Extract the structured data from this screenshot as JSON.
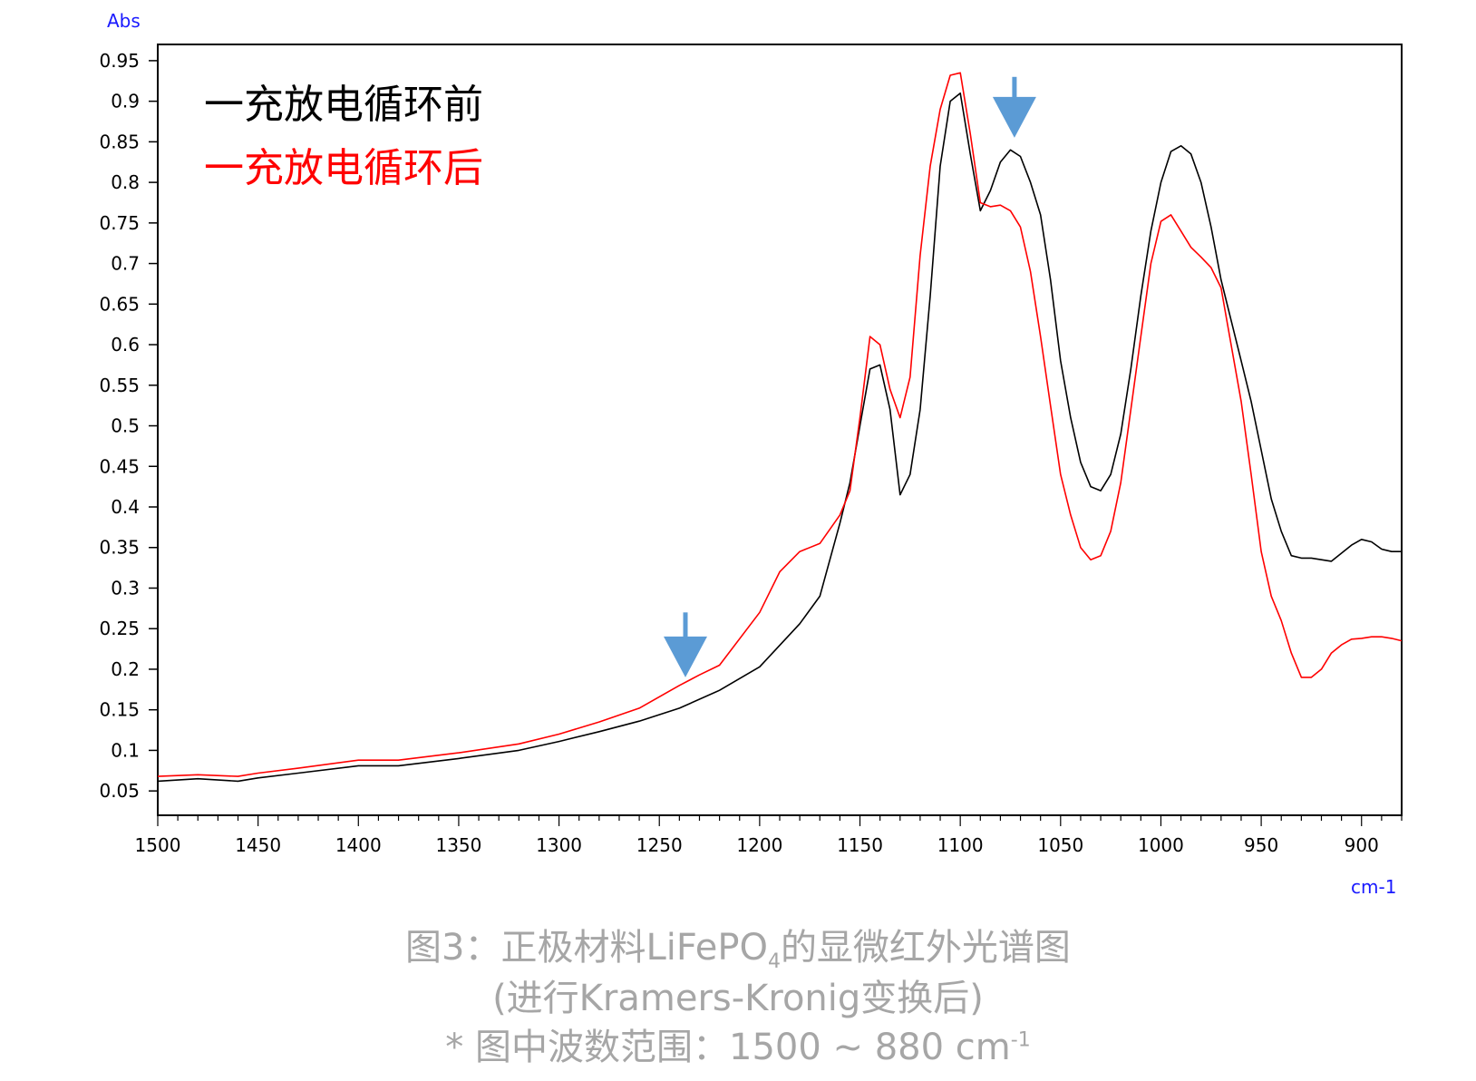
{
  "chart_data": {
    "type": "line",
    "ylabel": "Abs",
    "xlabel": "cm-1",
    "xlim": [
      1500,
      880
    ],
    "ylim": [
      0.02,
      0.97
    ],
    "x_reversed": true,
    "grid": false,
    "legend_position": "top-left",
    "x_ticks": [
      "1500",
      "1450",
      "1400",
      "1350",
      "1300",
      "1250",
      "1200",
      "1150",
      "1100",
      "1050",
      "1000",
      "950",
      "900"
    ],
    "y_ticks": [
      "0.95",
      "0.9",
      "0.85",
      "0.8",
      "0.75",
      "0.7",
      "0.65",
      "0.6",
      "0.55",
      "0.5",
      "0.45",
      "0.4",
      "0.35",
      "0.3",
      "0.25",
      "0.2",
      "0.15",
      "0.1",
      "0.05"
    ],
    "series": [
      {
        "name": "充放电循环前",
        "color": "#000000",
        "x": [
          1500,
          1480,
          1460,
          1450,
          1430,
          1400,
          1380,
          1350,
          1320,
          1300,
          1280,
          1260,
          1240,
          1220,
          1200,
          1180,
          1170,
          1160,
          1155,
          1150,
          1145,
          1140,
          1135,
          1130,
          1125,
          1120,
          1115,
          1110,
          1105,
          1100,
          1095,
          1090,
          1085,
          1080,
          1075,
          1070,
          1065,
          1060,
          1055,
          1050,
          1045,
          1040,
          1035,
          1030,
          1025,
          1020,
          1015,
          1010,
          1005,
          1000,
          995,
          990,
          985,
          980,
          975,
          970,
          965,
          960,
          955,
          950,
          945,
          940,
          935,
          930,
          925,
          920,
          915,
          910,
          905,
          900,
          895,
          890,
          885,
          880
        ],
        "y": [
          0.062,
          0.065,
          0.062,
          0.066,
          0.072,
          0.081,
          0.081,
          0.09,
          0.1,
          0.111,
          0.123,
          0.136,
          0.152,
          0.174,
          0.203,
          0.256,
          0.29,
          0.38,
          0.43,
          0.5,
          0.57,
          0.575,
          0.52,
          0.415,
          0.44,
          0.52,
          0.66,
          0.82,
          0.9,
          0.91,
          0.835,
          0.765,
          0.79,
          0.825,
          0.84,
          0.832,
          0.8,
          0.76,
          0.68,
          0.58,
          0.51,
          0.455,
          0.425,
          0.42,
          0.44,
          0.49,
          0.57,
          0.66,
          0.74,
          0.8,
          0.838,
          0.845,
          0.835,
          0.8,
          0.745,
          0.68,
          0.63,
          0.58,
          0.53,
          0.47,
          0.41,
          0.37,
          0.34,
          0.337,
          0.337,
          0.335,
          0.333,
          0.343,
          0.353,
          0.36,
          0.357,
          0.348,
          0.345,
          0.345
        ]
      },
      {
        "name": "充放电循环后",
        "color": "#ff0000",
        "x": [
          1500,
          1480,
          1460,
          1450,
          1430,
          1400,
          1380,
          1350,
          1320,
          1300,
          1280,
          1260,
          1240,
          1230,
          1220,
          1200,
          1190,
          1180,
          1170,
          1160,
          1155,
          1150,
          1145,
          1140,
          1135,
          1130,
          1125,
          1120,
          1115,
          1110,
          1105,
          1100,
          1095,
          1090,
          1085,
          1080,
          1075,
          1070,
          1065,
          1060,
          1055,
          1050,
          1045,
          1040,
          1035,
          1030,
          1025,
          1020,
          1015,
          1010,
          1005,
          1000,
          995,
          990,
          985,
          980,
          975,
          970,
          965,
          960,
          955,
          950,
          945,
          940,
          935,
          930,
          925,
          920,
          915,
          910,
          905,
          900,
          895,
          890,
          885,
          880
        ],
        "y": [
          0.068,
          0.07,
          0.068,
          0.072,
          0.078,
          0.088,
          0.088,
          0.097,
          0.108,
          0.12,
          0.135,
          0.152,
          0.18,
          0.193,
          0.205,
          0.27,
          0.32,
          0.345,
          0.355,
          0.39,
          0.42,
          0.51,
          0.61,
          0.6,
          0.545,
          0.51,
          0.56,
          0.71,
          0.82,
          0.89,
          0.932,
          0.935,
          0.86,
          0.775,
          0.77,
          0.772,
          0.765,
          0.745,
          0.69,
          0.61,
          0.525,
          0.44,
          0.39,
          0.35,
          0.335,
          0.34,
          0.37,
          0.43,
          0.52,
          0.61,
          0.7,
          0.752,
          0.76,
          0.74,
          0.72,
          0.708,
          0.695,
          0.67,
          0.6,
          0.53,
          0.44,
          0.345,
          0.29,
          0.26,
          0.22,
          0.19,
          0.19,
          0.2,
          0.22,
          0.23,
          0.237,
          0.238,
          0.24,
          0.24,
          0.238,
          0.235
        ]
      }
    ],
    "annotations": [
      {
        "type": "arrow-down",
        "x": 1237,
        "y_top": 0.27,
        "y_tip": 0.19,
        "color": "#5b9bd5"
      },
      {
        "type": "arrow-down",
        "x": 1073,
        "y_top": 0.93,
        "y_tip": 0.855,
        "color": "#5b9bd5"
      }
    ]
  },
  "legend": {
    "items": [
      {
        "label": "一充放电循环前",
        "color": "#000000"
      },
      {
        "label": "一充放电循环后",
        "color": "#ff0000"
      }
    ]
  },
  "caption": {
    "line1_a": "图3：正极材料LiFePO",
    "line1_sub": "4",
    "line1_b": "的显微红外光谱图",
    "line2": "(进行Kramers-Kronig变换后)",
    "line3_a": "* 图中波数范围：1500 ~ 880 cm",
    "line3_sup": "-1"
  }
}
